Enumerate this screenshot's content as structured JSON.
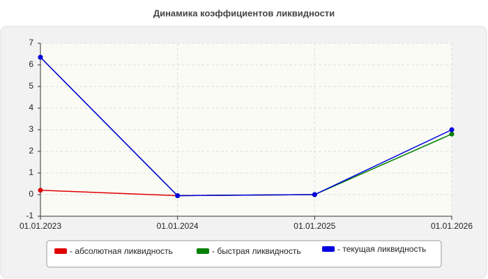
{
  "chart_data": {
    "type": "line",
    "title": "Динамика коэффициентов ликвидности",
    "categories": [
      "01.01.2023",
      "01.01.2024",
      "01.01.2025",
      "01.01.2026"
    ],
    "series": [
      {
        "name": "- абсолютная ликвидность",
        "color": "#e00000",
        "values": [
          0.2,
          -0.05,
          0,
          null
        ]
      },
      {
        "name": "- быстрая ликвидность",
        "color": "#008000",
        "values": [
          6.35,
          -0.05,
          0,
          2.8
        ]
      },
      {
        "name": "- текущая ликвидность",
        "color": "#0000e0",
        "values": [
          6.35,
          -0.05,
          0,
          3.0
        ]
      }
    ],
    "ylim": [
      -1,
      7
    ],
    "yticks": [
      -1,
      0,
      1,
      2,
      3,
      4,
      5,
      6,
      7
    ],
    "grid": true
  }
}
